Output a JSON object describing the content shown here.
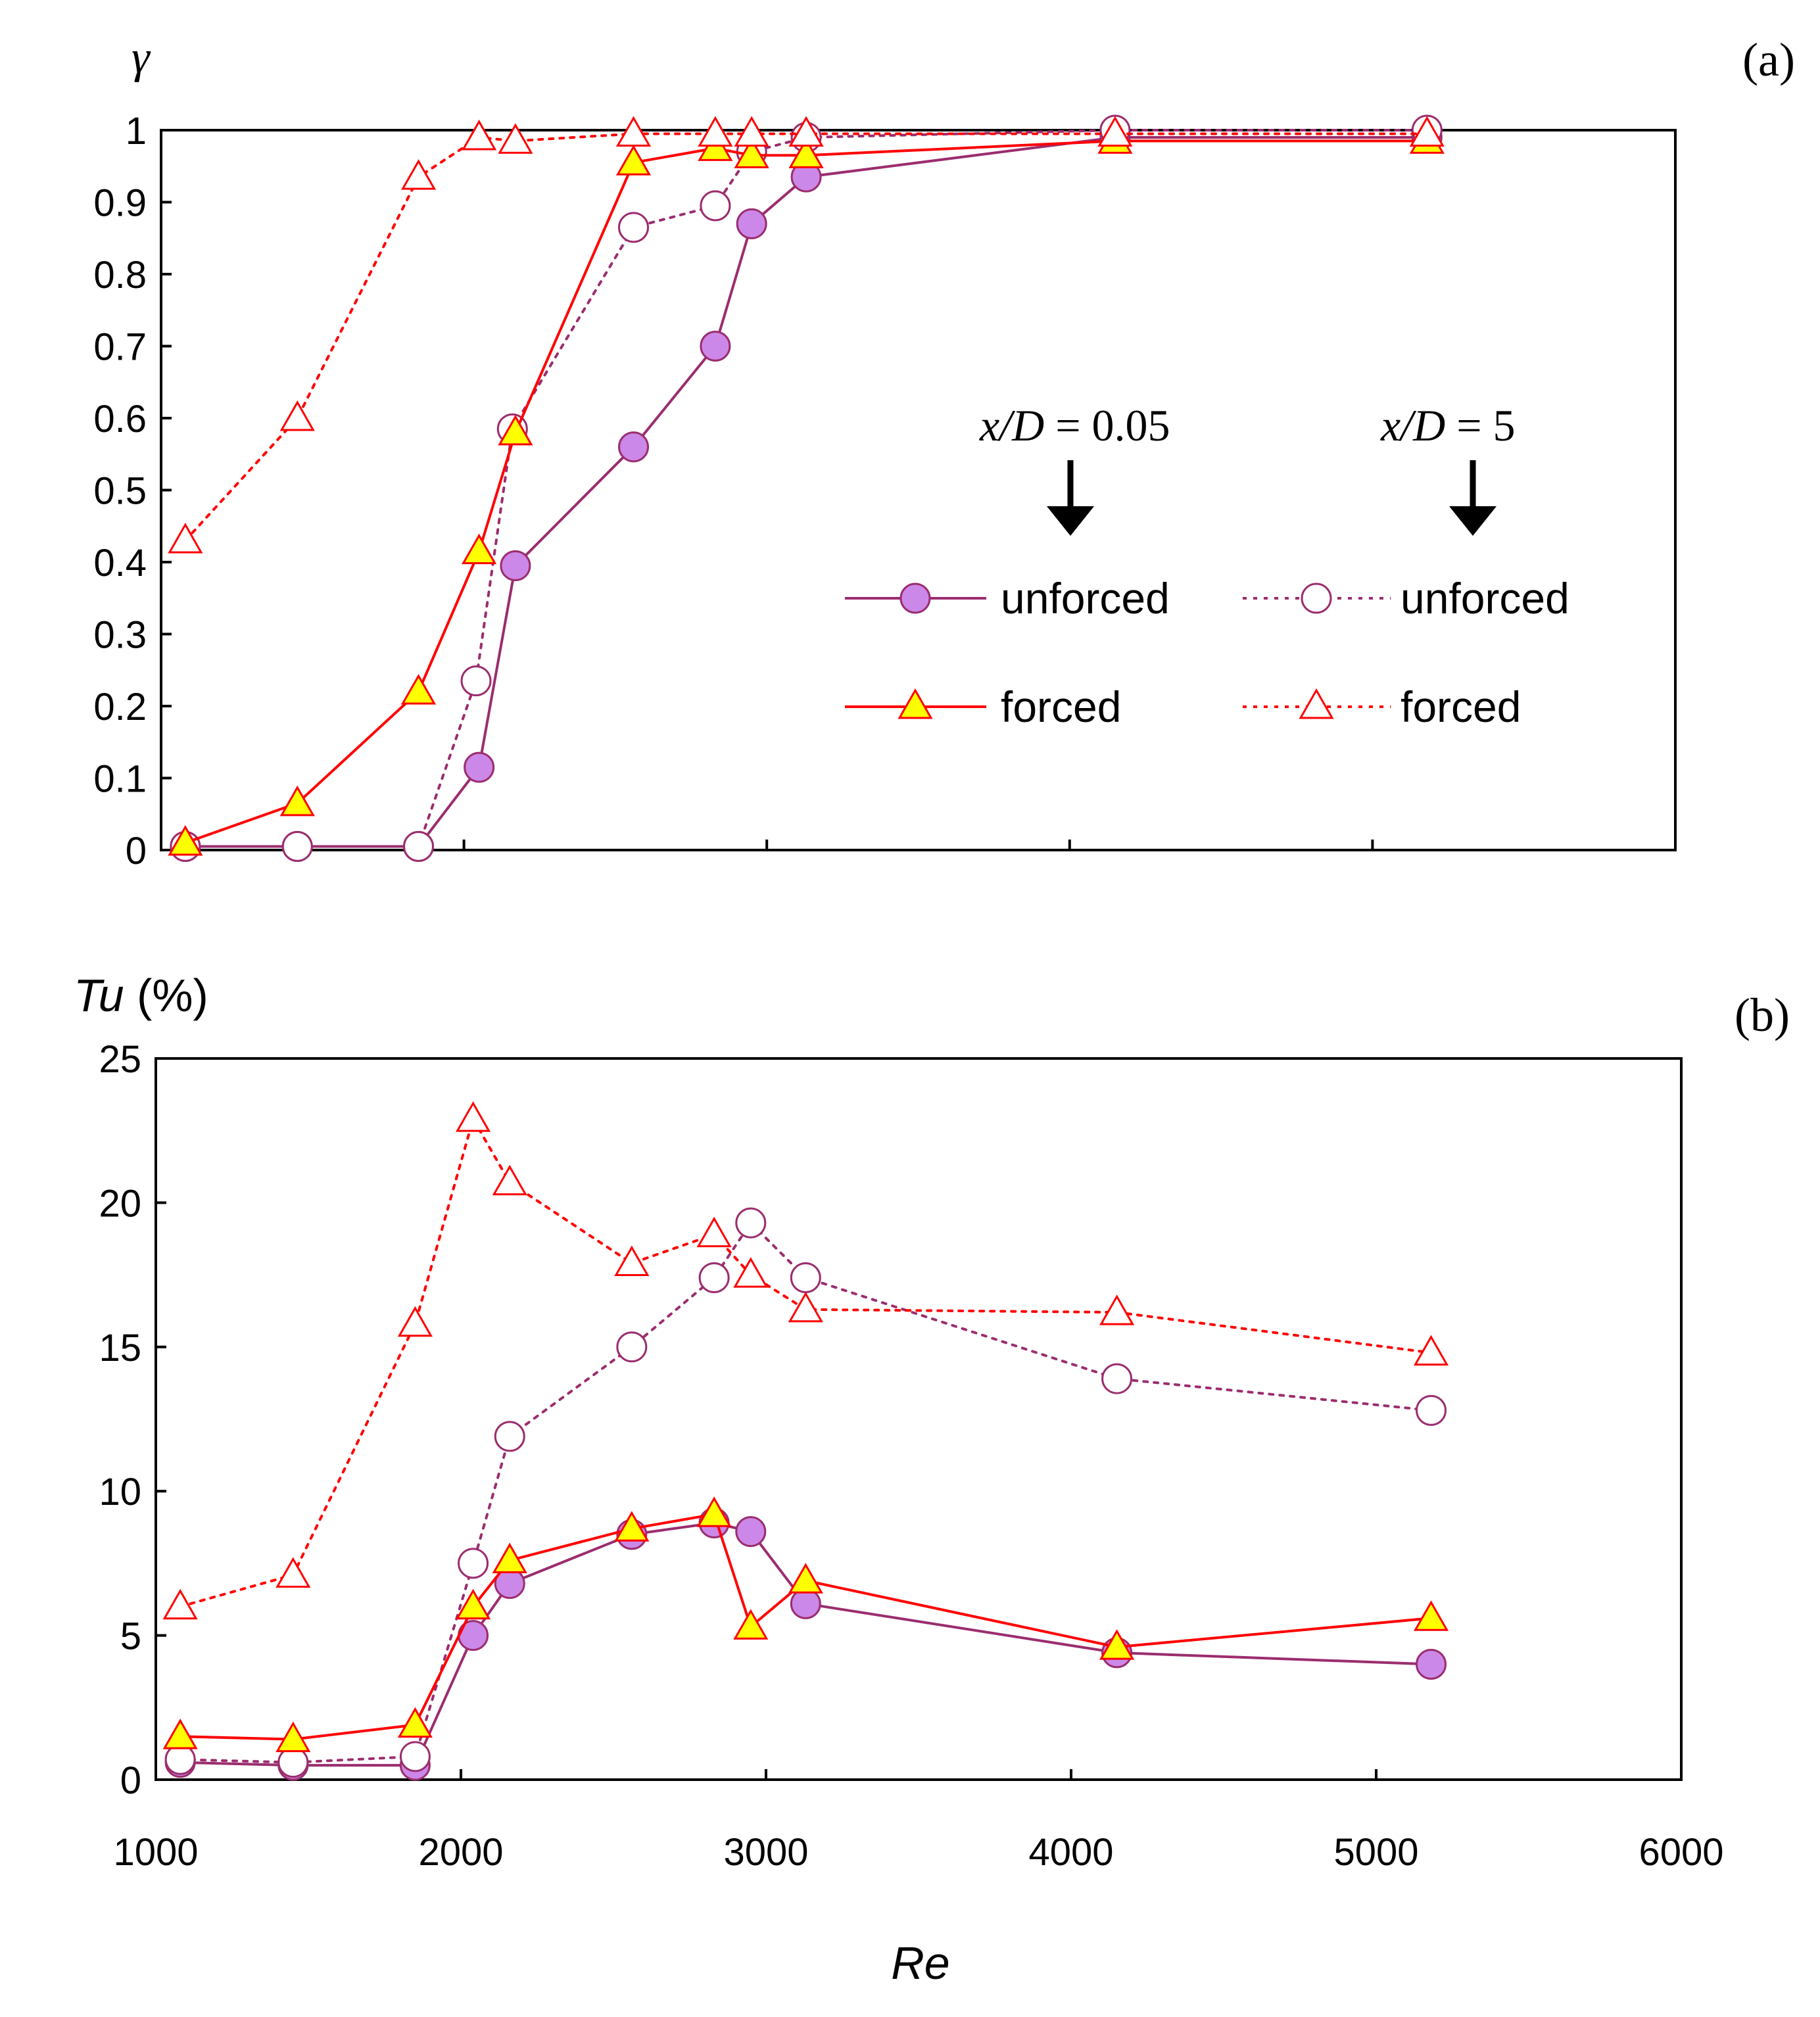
{
  "figure": {
    "annotations": {
      "x05_italic": "x/D",
      "x05_rest": " = 0.05",
      "x5_italic": "x/D",
      "x5_rest": " = 5"
    },
    "legend": {
      "unforced_near": "unforced",
      "unforced_far": "unforced",
      "forced_near": "forced",
      "forced_far": "forced"
    },
    "colors": {
      "unforced_line": "#9b2d6e",
      "unforced_fill": "#cc88e8",
      "forced_line": "#ff0000",
      "forced_fill": "#ffff00"
    },
    "icons": {
      "unforced_near": "filled-circle-marker",
      "unforced_far": "open-circle-marker",
      "forced_near": "filled-triangle-marker",
      "forced_far": "open-triangle-marker",
      "arrow": "down-arrow-icon"
    }
  },
  "chart_data": [
    {
      "type": "line",
      "panel_label": "(a)",
      "ylabel": "γ",
      "xlabel": "",
      "xlim": [
        1000,
        6000
      ],
      "ylim": [
        0,
        1
      ],
      "ytick_labels": [
        "0",
        "0.1",
        "0.2",
        "0.3",
        "0.4",
        "0.5",
        "0.6",
        "0.7",
        "0.8",
        "0.9",
        "1"
      ],
      "xticks": [
        1000,
        2000,
        3000,
        4000,
        5000,
        6000
      ],
      "grid": false,
      "series": [
        {
          "name": "unforced (x/D = 0.05)",
          "style": "solid",
          "marker": "filled-circle",
          "x": [
            1080,
            1450,
            1850,
            2050,
            2170,
            2560,
            2830,
            2950,
            3130,
            4150,
            5180
          ],
          "y": [
            0.005,
            0.005,
            0.005,
            0.115,
            0.395,
            0.56,
            0.7,
            0.87,
            0.935,
            0.99,
            0.99
          ]
        },
        {
          "name": "unforced (x/D = 5)",
          "style": "dotted",
          "marker": "open-circle",
          "x": [
            1080,
            1450,
            1850,
            2040,
            2160,
            2560,
            2830,
            2950,
            3130,
            4150,
            5180
          ],
          "y": [
            0.005,
            0.005,
            0.005,
            0.235,
            0.585,
            0.865,
            0.895,
            0.97,
            0.99,
            1.0,
            1.0
          ]
        },
        {
          "name": "forced (x/D = 0.05)",
          "style": "solid",
          "marker": "filled-triangle",
          "x": [
            1080,
            1450,
            1850,
            2050,
            2170,
            2560,
            2830,
            2950,
            3130,
            4150,
            5180
          ],
          "y": [
            0.01,
            0.065,
            0.22,
            0.415,
            0.58,
            0.955,
            0.975,
            0.965,
            0.965,
            0.985,
            0.985
          ]
        },
        {
          "name": "forced (x/D = 5)",
          "style": "dotted",
          "marker": "open-triangle",
          "x": [
            1080,
            1450,
            1850,
            2050,
            2170,
            2560,
            2830,
            2950,
            3130,
            4150,
            5180
          ],
          "y": [
            0.43,
            0.6,
            0.935,
            0.99,
            0.985,
            0.995,
            0.995,
            0.995,
            0.995,
            0.995,
            0.995
          ]
        }
      ]
    },
    {
      "type": "line",
      "panel_label": "(b)",
      "ylabel_italic": "Tu",
      "ylabel_unit": " (%)",
      "xlabel": "Re",
      "xlim": [
        1000,
        6000
      ],
      "ylim": [
        0,
        25
      ],
      "ytick_labels": [
        "0",
        "5",
        "10",
        "15",
        "20",
        "25"
      ],
      "xticks": [
        1000,
        2000,
        3000,
        4000,
        5000,
        6000
      ],
      "xtick_labels": [
        "1000",
        "2000",
        "3000",
        "4000",
        "5000",
        "6000"
      ],
      "grid": false,
      "series": [
        {
          "name": "unforced (x/D = 0.05)",
          "style": "solid",
          "marker": "filled-circle",
          "x": [
            1080,
            1450,
            1850,
            2040,
            2160,
            2560,
            2830,
            2950,
            3130,
            4150,
            5180
          ],
          "y": [
            0.6,
            0.5,
            0.5,
            5.0,
            6.8,
            8.5,
            8.9,
            8.6,
            6.1,
            4.4,
            4.0
          ]
        },
        {
          "name": "unforced (x/D = 5)",
          "style": "dotted",
          "marker": "open-circle",
          "x": [
            1080,
            1450,
            1850,
            2040,
            2160,
            2560,
            2830,
            2950,
            3130,
            4150,
            5180
          ],
          "y": [
            0.7,
            0.6,
            0.8,
            7.5,
            11.9,
            15.0,
            17.4,
            19.3,
            17.4,
            13.9,
            12.8
          ]
        },
        {
          "name": "forced (x/D = 0.05)",
          "style": "solid",
          "marker": "filled-triangle",
          "x": [
            1080,
            1450,
            1850,
            2040,
            2160,
            2560,
            2830,
            2950,
            3130,
            4150,
            5180
          ],
          "y": [
            1.5,
            1.4,
            1.9,
            6.0,
            7.6,
            8.7,
            9.2,
            5.3,
            6.9,
            4.6,
            5.6
          ]
        },
        {
          "name": "forced (x/D = 5)",
          "style": "dotted",
          "marker": "open-triangle",
          "x": [
            1080,
            1450,
            1850,
            2040,
            2160,
            2560,
            2830,
            2950,
            3130,
            4150,
            5180
          ],
          "y": [
            6.0,
            7.1,
            15.8,
            22.9,
            20.7,
            17.9,
            18.9,
            17.5,
            16.3,
            16.2,
            14.8
          ]
        }
      ]
    }
  ]
}
